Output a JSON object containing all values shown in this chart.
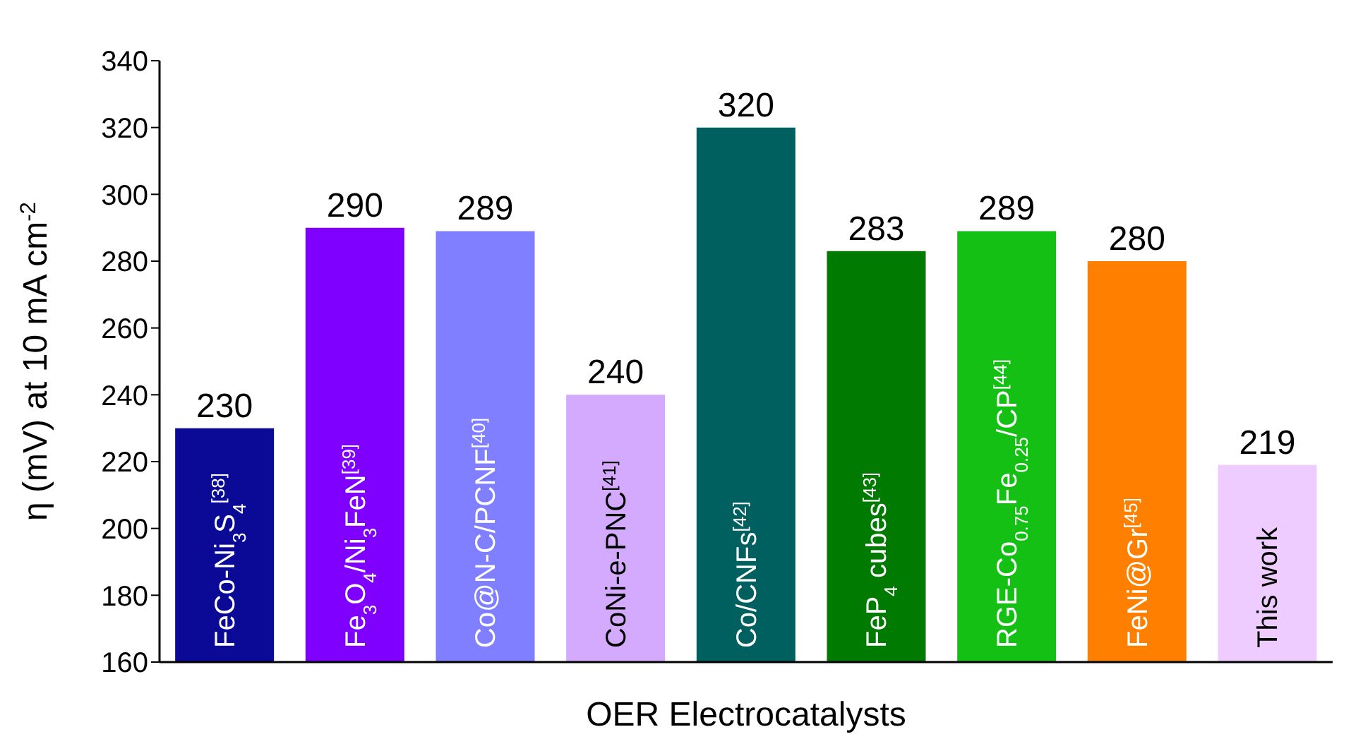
{
  "chart_data": {
    "type": "bar",
    "xlabel": "OER Electrocatalysts",
    "ylabel": "η (mV) at 10 mA cm$^{-2}$",
    "categories": [
      "FeCo-Ni$_{3}$S$_{4}$$^{[38]}$",
      "Fe$_{3}$O$_{4}$/Ni$_{3}$FeN$^{[39]}$",
      "Co@N-C/PCNF$^{[40]}$",
      "CoNi-e-PNC$^{[41]}$",
      "Co/CNFs$^{[42]}$",
      "FeP$_{4}$ cubes$^{[43]}$",
      "RGE-Co$_{0.75}$Fe$_{0.25}$/CP$^{[44]}$",
      "FeNi@Gr$^{[45]}$",
      "This work"
    ],
    "values": [
      230,
      290,
      289,
      240,
      320,
      283,
      289,
      280,
      219
    ],
    "colors": [
      "#0a0a96",
      "#7f00ff",
      "#7f7fff",
      "#d4aaff",
      "#006060",
      "#007a00",
      "#14c014",
      "#ff8000",
      "#efccff"
    ],
    "ylim": [
      160,
      340
    ],
    "yticks": [
      160,
      180,
      200,
      220,
      240,
      260,
      280,
      300,
      320,
      340
    ],
    "data_labels": true,
    "grid": false,
    "legend": false
  }
}
